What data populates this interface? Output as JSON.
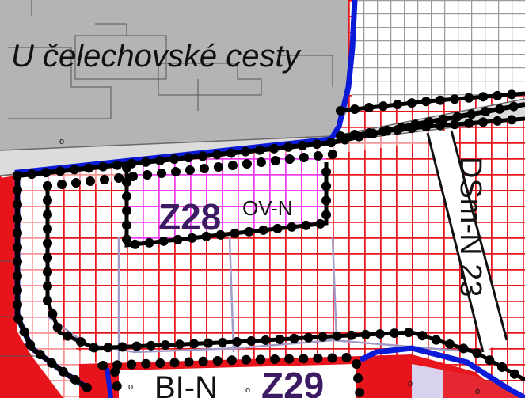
{
  "map": {
    "street_name": "U čelechovské cesty",
    "zones": [
      {
        "id": "Z28",
        "code": "OV-N"
      },
      {
        "id": "Z29",
        "code": "BI-N"
      }
    ],
    "road_label": "DSm-N 23",
    "small_marks": [
      "o",
      "o",
      "o",
      "o",
      "o",
      "o"
    ],
    "colors": {
      "built_area": "#b4b4b4",
      "residential_hatch": "#e8141c",
      "civic_hatch": "#f23cf2",
      "zone_label": "#3c1a64",
      "boundary_blue": "#0a1ad6",
      "development_boundary": "#000000",
      "plot_lines": "#a49cc8"
    }
  }
}
